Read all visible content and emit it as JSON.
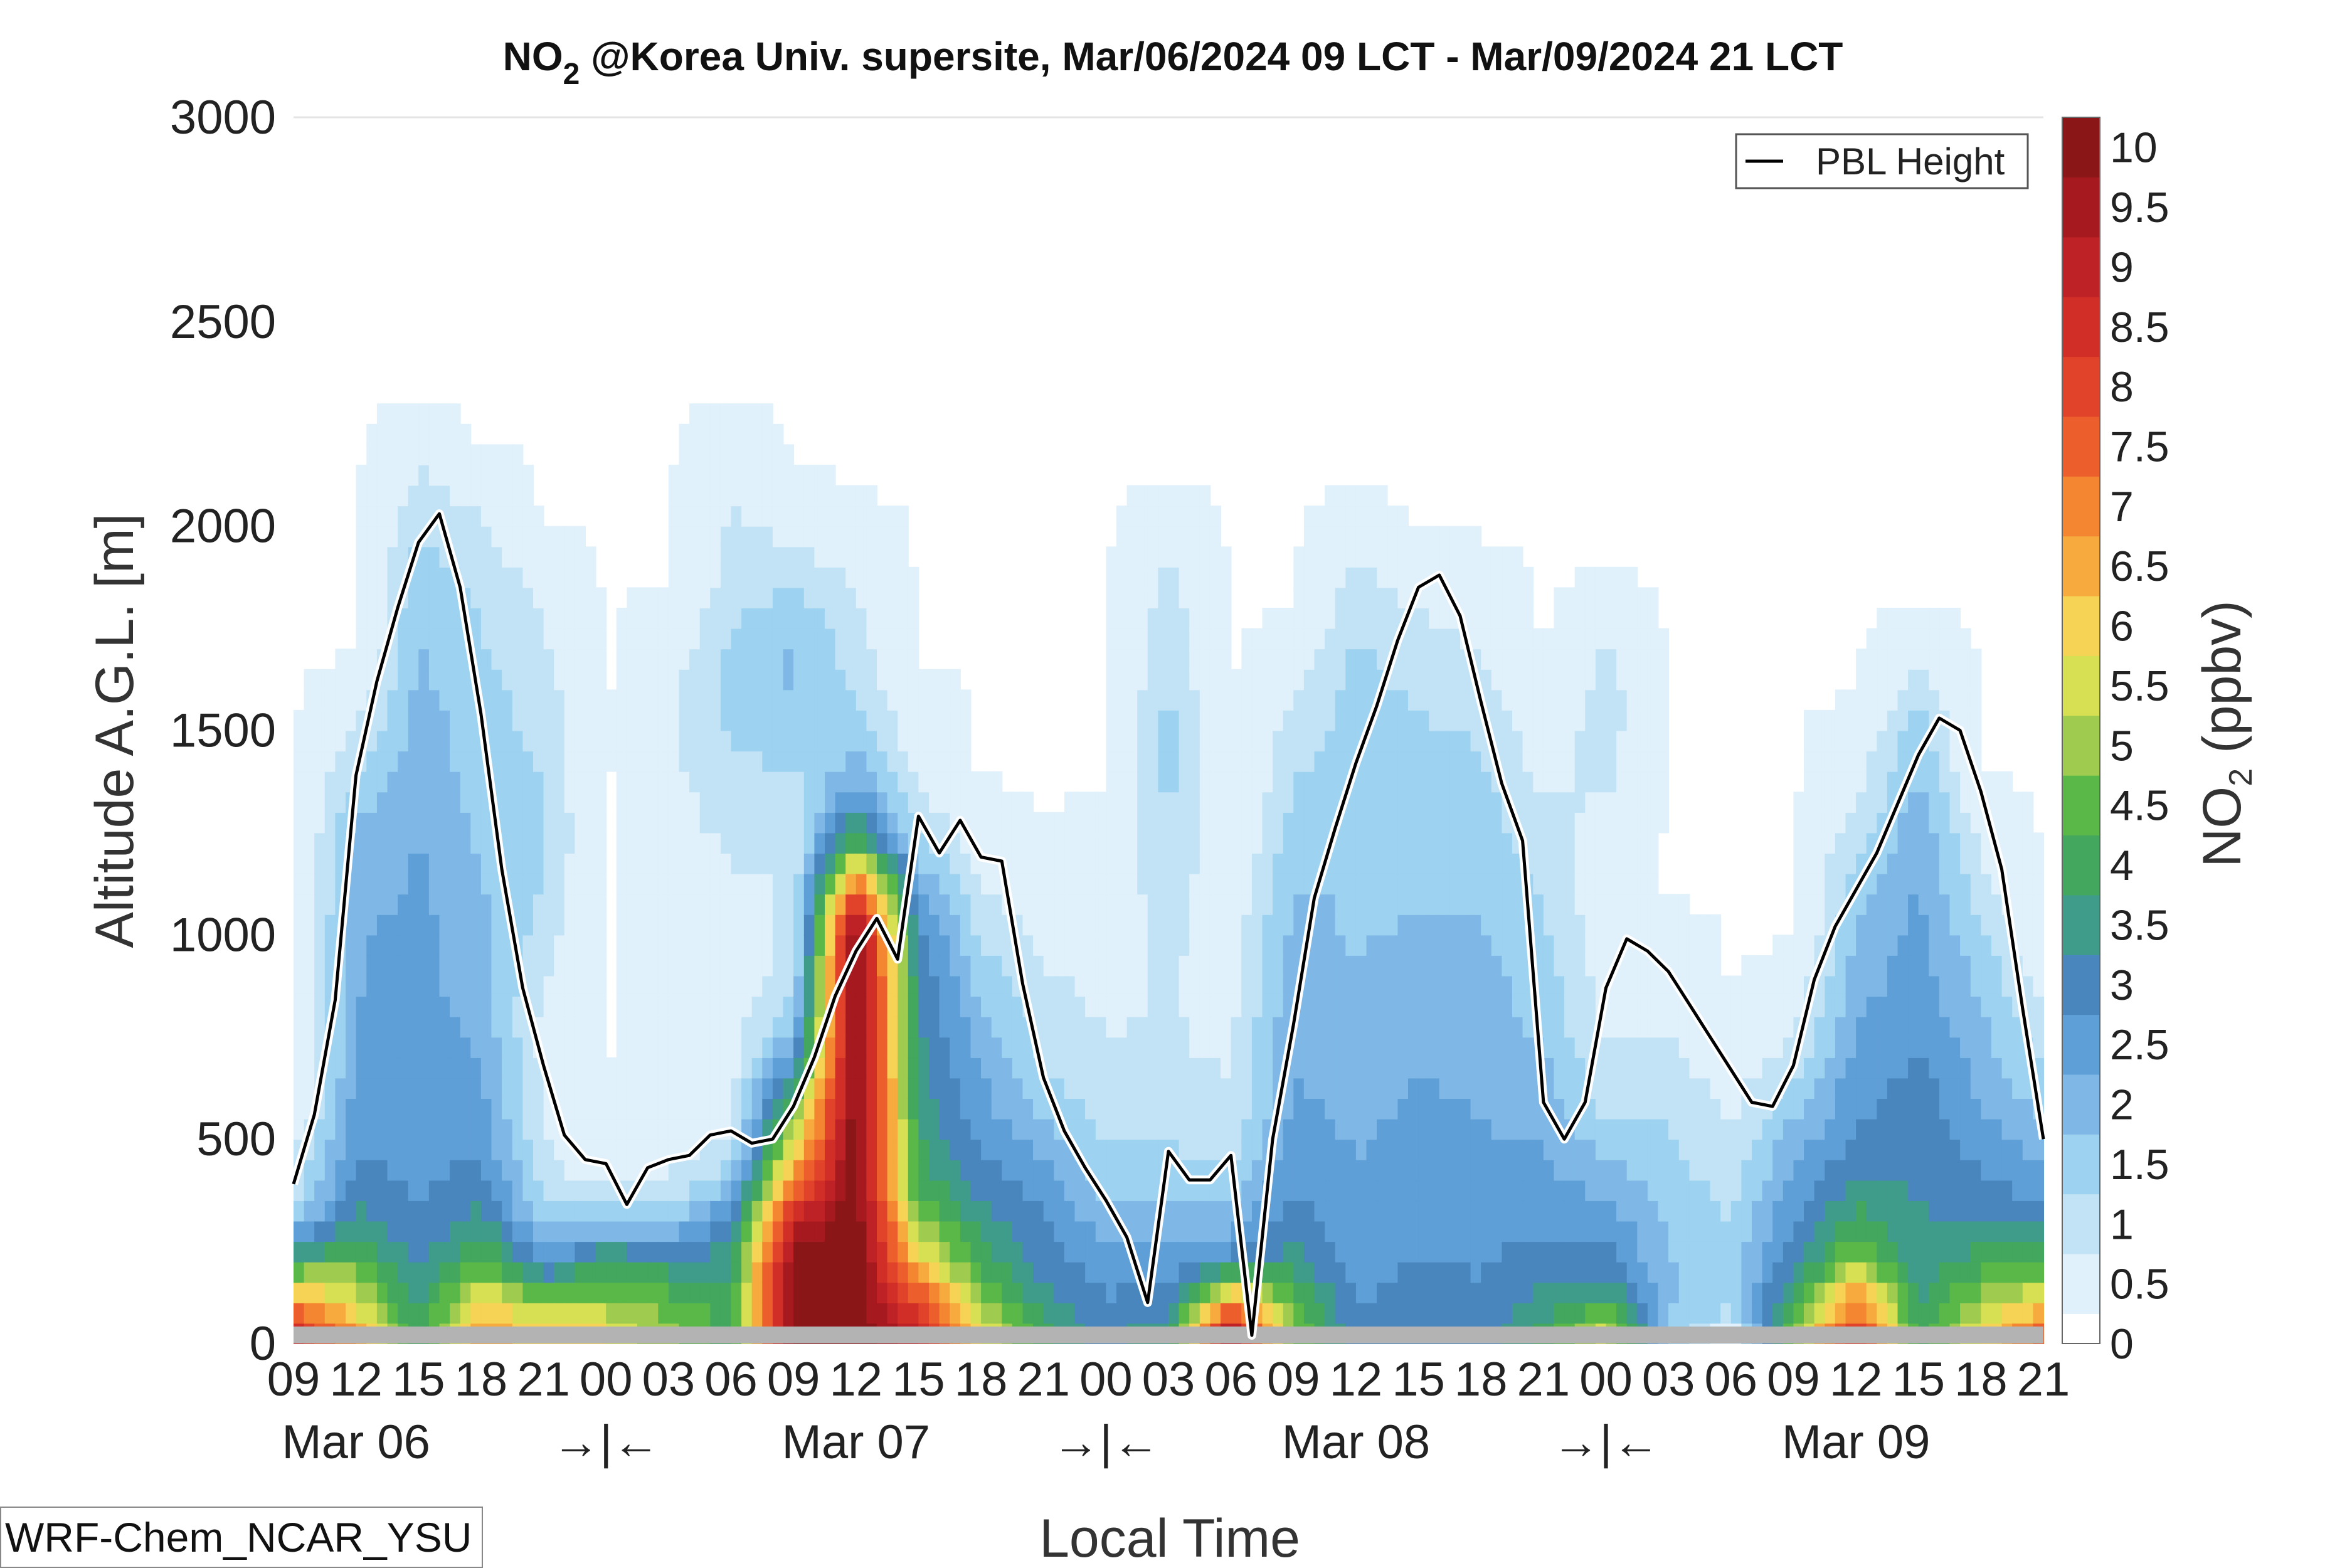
{
  "chart_data": {
    "type": "heatmap",
    "title": {
      "prefix": "NO",
      "subscript": "2",
      "suffix": " @Korea Univ. supersite, Mar/06/2024 09 LCT - Mar/09/2024 21 LCT"
    },
    "xlabel": "Local Time",
    "ylabel": "Altitude A.G.L. [m]",
    "colorbar_label": {
      "prefix": "NO",
      "subscript": "2",
      "suffix": " (ppbv)"
    },
    "ylim": [
      0,
      3000
    ],
    "yticks": [
      "0",
      "500",
      "1000",
      "1500",
      "2000",
      "2500",
      "3000"
    ],
    "xlim_hours": [
      0,
      84
    ],
    "xtick_labels": [
      "09",
      "12",
      "15",
      "18",
      "21",
      "00",
      "03",
      "06",
      "09",
      "12",
      "15",
      "18",
      "21",
      "00",
      "03",
      "06",
      "09",
      "12",
      "15",
      "18",
      "21",
      "00",
      "03",
      "06",
      "09",
      "12",
      "15",
      "18",
      "21"
    ],
    "date_labels": [
      {
        "text": "Mar 06",
        "hour": 3
      },
      {
        "text": "→|←",
        "hour": 15
      },
      {
        "text": "Mar 07",
        "hour": 27
      },
      {
        "text": "→|←",
        "hour": 39
      },
      {
        "text": "Mar 08",
        "hour": 51
      },
      {
        "text": "→|←",
        "hour": 63
      },
      {
        "text": "Mar 09",
        "hour": 75
      }
    ],
    "colorbar": {
      "ticks": [
        "0",
        "0.5",
        "1",
        "1.5",
        "2",
        "2.5",
        "3",
        "3.5",
        "4",
        "4.5",
        "5",
        "5.5",
        "6",
        "6.5",
        "7",
        "7.5",
        "8",
        "8.5",
        "9",
        "9.5",
        "10"
      ],
      "colors": [
        "#ffffff",
        "#e0f1fb",
        "#c2e3f6",
        "#9dd3f1",
        "#7fb8e6",
        "#5f9fd7",
        "#4886bd",
        "#3f9c8a",
        "#43a75d",
        "#5ab849",
        "#9fcc4e",
        "#d7df52",
        "#f6d354",
        "#f7aa3d",
        "#f48632",
        "#ec5f2c",
        "#e1432a",
        "#d12e27",
        "#bf2226",
        "#a5191f",
        "#8b1618"
      ],
      "max": 10.25
    },
    "pbl_height": {
      "name": "PBL Height",
      "hours": [
        0,
        1,
        2,
        3,
        4,
        5,
        6,
        7,
        8,
        9,
        10,
        11,
        12,
        13,
        14,
        15,
        16,
        17,
        18,
        19,
        20,
        21,
        22,
        23,
        24,
        25,
        26,
        27,
        28,
        29,
        30,
        31,
        32,
        33,
        34,
        35,
        36,
        37,
        38,
        39,
        40,
        41,
        42,
        43,
        44,
        45,
        46,
        47,
        48,
        49,
        50,
        51,
        52,
        53,
        54,
        55,
        56,
        57,
        58,
        59,
        60,
        61,
        62,
        63,
        64,
        65,
        66,
        67,
        68,
        69,
        70,
        71,
        72,
        73,
        74,
        75,
        76,
        77,
        78,
        79,
        80,
        81,
        82,
        83,
        84
      ],
      "values": [
        390,
        560,
        840,
        1390,
        1620,
        1800,
        1960,
        2030,
        1850,
        1540,
        1160,
        870,
        680,
        510,
        450,
        440,
        340,
        430,
        450,
        460,
        510,
        520,
        490,
        500,
        580,
        700,
        850,
        960,
        1040,
        940,
        1290,
        1200,
        1280,
        1190,
        1180,
        880,
        650,
        520,
        430,
        350,
        260,
        100,
        470,
        400,
        400,
        460,
        20,
        500,
        780,
        1090,
        1260,
        1420,
        1560,
        1720,
        1850,
        1880,
        1780,
        1570,
        1370,
        1230,
        590,
        500,
        590,
        870,
        990,
        960,
        910,
        830,
        750,
        670,
        590,
        580,
        680,
        890,
        1020,
        1110,
        1200,
        1320,
        1440,
        1530,
        1500,
        1350,
        1160,
        820,
        500
      ]
    },
    "no2_profiles": {
      "units": "ppbv",
      "heights_m": [
        0,
        100,
        200,
        300,
        400,
        500,
        600,
        700,
        800,
        900,
        1000,
        1100,
        1200,
        1300,
        1400,
        1500,
        1600,
        1700,
        1800,
        1900,
        2000,
        2100,
        2200,
        2300
      ],
      "hours": [
        0,
        3,
        6,
        9,
        12,
        15,
        18,
        21,
        24,
        27,
        30,
        33,
        36,
        39,
        42,
        45,
        48,
        51,
        54,
        57,
        60,
        63,
        66,
        69,
        72,
        75,
        78,
        81,
        84
      ],
      "values": [
        [
          9,
          7,
          4,
          1.5,
          0.8,
          0.5,
          0,
          0,
          0,
          0,
          0,
          0,
          0,
          0,
          0,
          0,
          0,
          0,
          0,
          0,
          0,
          0,
          0,
          0
        ],
        [
          7,
          5.5,
          4.5,
          3.5,
          3,
          2.6,
          2.4,
          2.3,
          2.3,
          2.2,
          2.2,
          2.1,
          2,
          1.7,
          1.2,
          0.8,
          0.3,
          0,
          0,
          0,
          0,
          0,
          0,
          0
        ],
        [
          4,
          3.5,
          3,
          2.8,
          2.6,
          2.5,
          2.5,
          2.5,
          2.4,
          2.4,
          2.4,
          2.3,
          2.3,
          2.2,
          2.1,
          2,
          1.9,
          1.8,
          1.7,
          1.5,
          1.2,
          0.9,
          0.5,
          0
        ],
        [
          7,
          6,
          4.5,
          3.5,
          3,
          2.6,
          2.4,
          2.2,
          2.1,
          2,
          1.9,
          1.8,
          1.7,
          1.6,
          1.5,
          1.5,
          1.4,
          1.3,
          1.2,
          1,
          0.8,
          0.5,
          0,
          0
        ],
        [
          6,
          5,
          2.5,
          1.5,
          1,
          0.8,
          0.7,
          0.6,
          0.6,
          0.8,
          1,
          1.2,
          1.3,
          1.3,
          1.2,
          1.1,
          1,
          0.8,
          0.7,
          0.5,
          0,
          0,
          0,
          0
        ],
        [
          6,
          5,
          4,
          1.5,
          0.5,
          0.3,
          0.2,
          0,
          0,
          0,
          0,
          0,
          0,
          0,
          0,
          0,
          0,
          0,
          0,
          0,
          0,
          0,
          0,
          0
        ],
        [
          5,
          4.5,
          3.5,
          1.5,
          0.8,
          0.5,
          0.4,
          0.3,
          0.3,
          0.3,
          0.3,
          0.3,
          0.4,
          0.5,
          0.6,
          0.7,
          0.6,
          0.4,
          0.2,
          0,
          0,
          0,
          0,
          0
        ],
        [
          4,
          4,
          3.5,
          3,
          1.5,
          0.8,
          0.6,
          0.5,
          0.4,
          0.4,
          0.5,
          0.6,
          0.8,
          1,
          1.2,
          1.3,
          1.4,
          1.3,
          1.1,
          0.9,
          0.8,
          0.7,
          0.5,
          0
        ],
        [
          10,
          10,
          10,
          9,
          7,
          5.5,
          4,
          2.5,
          1.5,
          1,
          0.9,
          0.8,
          0.8,
          0.9,
          1.2,
          1.5,
          1.8,
          1.8,
          1.5,
          1,
          0.6,
          0.2,
          0,
          0
        ],
        [
          10.2,
          10.2,
          10.2,
          10.2,
          10.2,
          10.2,
          10.2,
          10.2,
          10.2,
          10.2,
          10,
          8,
          5,
          3,
          2,
          1.5,
          1.2,
          1,
          0.8,
          0.6,
          0.3,
          0,
          0,
          0
        ],
        [
          9,
          8,
          6,
          5,
          4,
          3.8,
          3.5,
          3.4,
          3.3,
          3.2,
          3,
          2.5,
          1.5,
          1,
          0.6,
          0.4,
          0.2,
          0,
          0,
          0,
          0,
          0,
          0,
          0
        ],
        [
          6,
          5,
          4,
          3.5,
          3,
          2.6,
          2.4,
          2.2,
          1.8,
          1.5,
          1.2,
          0.8,
          0.5,
          0.3,
          0,
          0,
          0,
          0,
          0,
          0,
          0,
          0,
          0,
          0
        ],
        [
          4,
          3.5,
          3,
          2.8,
          2.5,
          2,
          1.5,
          1.2,
          1,
          0.8,
          0.6,
          0.4,
          0.2,
          0,
          0,
          0,
          0,
          0,
          0,
          0,
          0,
          0,
          0,
          0
        ],
        [
          3,
          2.8,
          2.5,
          2,
          1.5,
          1.2,
          1,
          0.8,
          0.7,
          0.6,
          0.5,
          0.4,
          0.3,
          0.2,
          0,
          0,
          0,
          0,
          0,
          0,
          0,
          0,
          0,
          0
        ],
        [
          4,
          3,
          2.5,
          2,
          1.5,
          1.2,
          1,
          0.8,
          0.8,
          0.8,
          0.9,
          1,
          1.2,
          1.3,
          1.4,
          1.4,
          1.3,
          1.2,
          1,
          0.8,
          0.5,
          0,
          0,
          0
        ],
        [
          10,
          7,
          3,
          2,
          1.5,
          1,
          0.8,
          0.7,
          0.6,
          0.5,
          0.4,
          0.3,
          0.2,
          0,
          0,
          0,
          0,
          0,
          0,
          0,
          0,
          0,
          0,
          0
        ],
        [
          5,
          4.5,
          3.5,
          3,
          2.7,
          2.5,
          2.3,
          2.2,
          2.1,
          2,
          1.9,
          1.8,
          1.6,
          1.4,
          1.2,
          1,
          0.7,
          0.4,
          0,
          0,
          0,
          0,
          0,
          0
        ],
        [
          3,
          2.7,
          2.5,
          2.4,
          2.3,
          2.2,
          2.1,
          2,
          1.9,
          1.8,
          1.7,
          1.7,
          1.6,
          1.6,
          1.5,
          1.5,
          1.4,
          1.3,
          1.1,
          0.8,
          0.4,
          0,
          0,
          0
        ],
        [
          3.2,
          3,
          2.8,
          2.6,
          2.5,
          2.4,
          2.3,
          2.2,
          2.1,
          2,
          1.8,
          1.7,
          1.6,
          1.5,
          1.4,
          1.3,
          1.2,
          1,
          0.7,
          0.3,
          0,
          0,
          0,
          0
        ],
        [
          3,
          2.8,
          2.7,
          2.5,
          2.4,
          2.3,
          2.2,
          2.1,
          2,
          1.9,
          1.8,
          1.7,
          1.6,
          1.5,
          1.3,
          1.2,
          1,
          0.7,
          0.5,
          0.2,
          0,
          0,
          0,
          0
        ],
        [
          4,
          3.5,
          3,
          2.6,
          2.4,
          2.2,
          2,
          1.8,
          1.6,
          1.5,
          1.3,
          1.2,
          1,
          0.8,
          0.6,
          0.4,
          0.2,
          0,
          0,
          0,
          0,
          0,
          0,
          0
        ],
        [
          6,
          4,
          3,
          2.5,
          2,
          1.5,
          1,
          0.8,
          0.6,
          0.5,
          0.4,
          0.4,
          0.5,
          0.7,
          0.9,
          1,
          1,
          0.8,
          0.4,
          0,
          0,
          0,
          0,
          0
        ],
        [
          1.8,
          1.8,
          1.8,
          1.7,
          1.5,
          1.3,
          1.1,
          0.9,
          0.7,
          0.5,
          0.3,
          0,
          0,
          0,
          0,
          0,
          0,
          0,
          0,
          0,
          0,
          0,
          0,
          0
        ],
        [
          0,
          1.5,
          1.5,
          1.2,
          1,
          0.8,
          0.6,
          0.4,
          0.2,
          0,
          0,
          0,
          0,
          0,
          0,
          0,
          0,
          0,
          0,
          0,
          0,
          0,
          0,
          0
        ],
        [
          5,
          4,
          3,
          2.7,
          2.4,
          2,
          1.5,
          1,
          0.5,
          0.3,
          0,
          0,
          0,
          0,
          0,
          0,
          0,
          0,
          0,
          0,
          0,
          0,
          0,
          0
        ],
        [
          9,
          7,
          5,
          4,
          3.2,
          2.8,
          2.6,
          2.4,
          2.2,
          2,
          1.8,
          1.6,
          1.2,
          0.8,
          0.5,
          0.3,
          0,
          0,
          0,
          0,
          0,
          0,
          0,
          0
        ],
        [
          4,
          3.6,
          3.4,
          3.3,
          3.2,
          3.1,
          3,
          2.8,
          2.6,
          2.5,
          2.4,
          2.3,
          2.2,
          2,
          1.8,
          1.5,
          1,
          0.5,
          0,
          0,
          0,
          0,
          0,
          0
        ],
        [
          6,
          5,
          4,
          3.2,
          2.8,
          2.5,
          2.2,
          2,
          1.8,
          1.6,
          1.3,
          1,
          0.7,
          0.4,
          0,
          0,
          0,
          0,
          0,
          0,
          0,
          0,
          0,
          0
        ],
        [
          8,
          6,
          4,
          3,
          2.5,
          2,
          1.5,
          1.2,
          0.8,
          0.5,
          0.2,
          0,
          0,
          0,
          0,
          0,
          0,
          0,
          0,
          0,
          0,
          0,
          0,
          0
        ]
      ]
    },
    "legend_position": "top-right",
    "grid": false,
    "ground_color": "#b3b3b3"
  },
  "model_label": "WRF-Chem_NCAR_YSU"
}
